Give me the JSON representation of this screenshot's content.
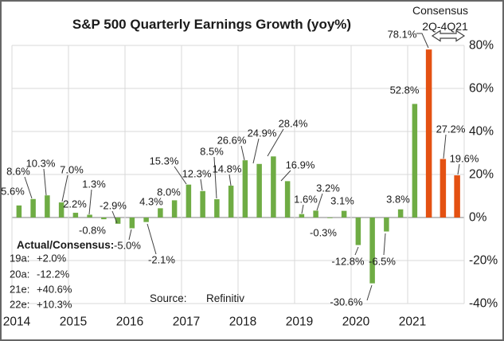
{
  "title": "S&P 500 Quarterly Earnings Growth (yoy%)",
  "consensus_note": {
    "line1": "Consensus",
    "line2": "2Q-4Q21"
  },
  "annotation_block": {
    "header": "Actual/Consensus:",
    "rows": [
      {
        "label": "19a:",
        "value": "+2.0%"
      },
      {
        "label": "20a:",
        "value": "-12.2%"
      },
      {
        "label": "21e:",
        "value": "+40.6%"
      },
      {
        "label": "22e:",
        "value": "+10.3%"
      }
    ]
  },
  "source": {
    "label": "Source:",
    "value": "Refinitiv"
  },
  "colors": {
    "actual_bar": "#6FAC44",
    "consensus_bar": "#E45112",
    "gridline": "#D9D9D9",
    "zero_line": "#808080",
    "text": "#1A1A1A",
    "chart_border": "#666666"
  },
  "chart_data": {
    "type": "bar",
    "title": "S&P 500 Quarterly Earnings Growth (yoy%)",
    "ylabel": "",
    "xlabel": "",
    "ylim": [
      -40,
      80
    ],
    "grid": true,
    "legend_position": "none",
    "y_tick_labels": [
      "80%",
      "60%",
      "40%",
      "20%",
      "0%",
      "-20%",
      "-40%"
    ],
    "x_tick_labels": [
      "2014",
      "2015",
      "2016",
      "2017",
      "2018",
      "2019",
      "2020",
      "2021"
    ],
    "series_info": [
      {
        "name": "Actual",
        "color_key": "actual_bar"
      },
      {
        "name": "Consensus 2Q-4Q21",
        "color_key": "consensus_bar"
      }
    ],
    "points": [
      {
        "quarter": "2014 Q1",
        "value": 5.6,
        "label": "5.6%",
        "series": "actual"
      },
      {
        "quarter": "2014 Q2",
        "value": 8.6,
        "label": "8.6%",
        "series": "actual"
      },
      {
        "quarter": "2014 Q3",
        "value": 10.3,
        "label": "10.3%",
        "series": "actual"
      },
      {
        "quarter": "2014 Q4",
        "value": 7.0,
        "label": "7.0%",
        "series": "actual"
      },
      {
        "quarter": "2015 Q1",
        "value": 2.2,
        "label": "2.2%",
        "series": "actual"
      },
      {
        "quarter": "2015 Q2",
        "value": 1.3,
        "label": "1.3%",
        "series": "actual"
      },
      {
        "quarter": "2015 Q3",
        "value": -0.8,
        "label": "-0.8%",
        "series": "actual"
      },
      {
        "quarter": "2015 Q4",
        "value": -2.9,
        "label": "-2.9%",
        "series": "actual"
      },
      {
        "quarter": "2016 Q1",
        "value": -5.0,
        "label": "-5.0%",
        "series": "actual"
      },
      {
        "quarter": "2016 Q2",
        "value": -2.1,
        "label": "-2.1%",
        "series": "actual"
      },
      {
        "quarter": "2016 Q3",
        "value": 4.3,
        "label": "4.3%",
        "series": "actual"
      },
      {
        "quarter": "2016 Q4",
        "value": 8.0,
        "label": "8.0%",
        "series": "actual"
      },
      {
        "quarter": "2017 Q1",
        "value": 15.3,
        "label": "15.3%",
        "series": "actual"
      },
      {
        "quarter": "2017 Q2",
        "value": 12.3,
        "label": "12.3%",
        "series": "actual"
      },
      {
        "quarter": "2017 Q3",
        "value": 8.5,
        "label": "8.5%",
        "series": "actual"
      },
      {
        "quarter": "2017 Q4",
        "value": 14.8,
        "label": "14.8%",
        "series": "actual"
      },
      {
        "quarter": "2018 Q1",
        "value": 26.6,
        "label": "26.6%",
        "series": "actual"
      },
      {
        "quarter": "2018 Q2",
        "value": 24.9,
        "label": "24.9%",
        "series": "actual"
      },
      {
        "quarter": "2018 Q3",
        "value": 28.4,
        "label": "28.4%",
        "series": "actual"
      },
      {
        "quarter": "2018 Q4",
        "value": 16.9,
        "label": "16.9%",
        "series": "actual"
      },
      {
        "quarter": "2019 Q1",
        "value": 1.6,
        "label": "1.6%",
        "series": "actual"
      },
      {
        "quarter": "2019 Q2",
        "value": 3.2,
        "label": "3.2%",
        "series": "actual"
      },
      {
        "quarter": "2019 Q3",
        "value": -0.3,
        "label": "-0.3%",
        "series": "actual"
      },
      {
        "quarter": "2019 Q4",
        "value": 3.1,
        "label": "3.1%",
        "series": "actual"
      },
      {
        "quarter": "2020 Q1",
        "value": -12.8,
        "label": "-12.8%",
        "series": "actual"
      },
      {
        "quarter": "2020 Q2",
        "value": -30.6,
        "label": "-30.6%",
        "series": "actual"
      },
      {
        "quarter": "2020 Q3",
        "value": -6.5,
        "label": "-6.5%",
        "series": "actual"
      },
      {
        "quarter": "2020 Q4",
        "value": 3.8,
        "label": "3.8%",
        "series": "actual"
      },
      {
        "quarter": "2021 Q1",
        "value": 52.8,
        "label": "52.8%",
        "series": "actual"
      },
      {
        "quarter": "2021 Q2",
        "value": 78.1,
        "label": "78.1%",
        "series": "consensus"
      },
      {
        "quarter": "2021 Q3",
        "value": 27.2,
        "label": "27.2%",
        "series": "consensus"
      },
      {
        "quarter": "2021 Q4",
        "value": 19.6,
        "label": "19.6%",
        "series": "consensus"
      }
    ]
  }
}
